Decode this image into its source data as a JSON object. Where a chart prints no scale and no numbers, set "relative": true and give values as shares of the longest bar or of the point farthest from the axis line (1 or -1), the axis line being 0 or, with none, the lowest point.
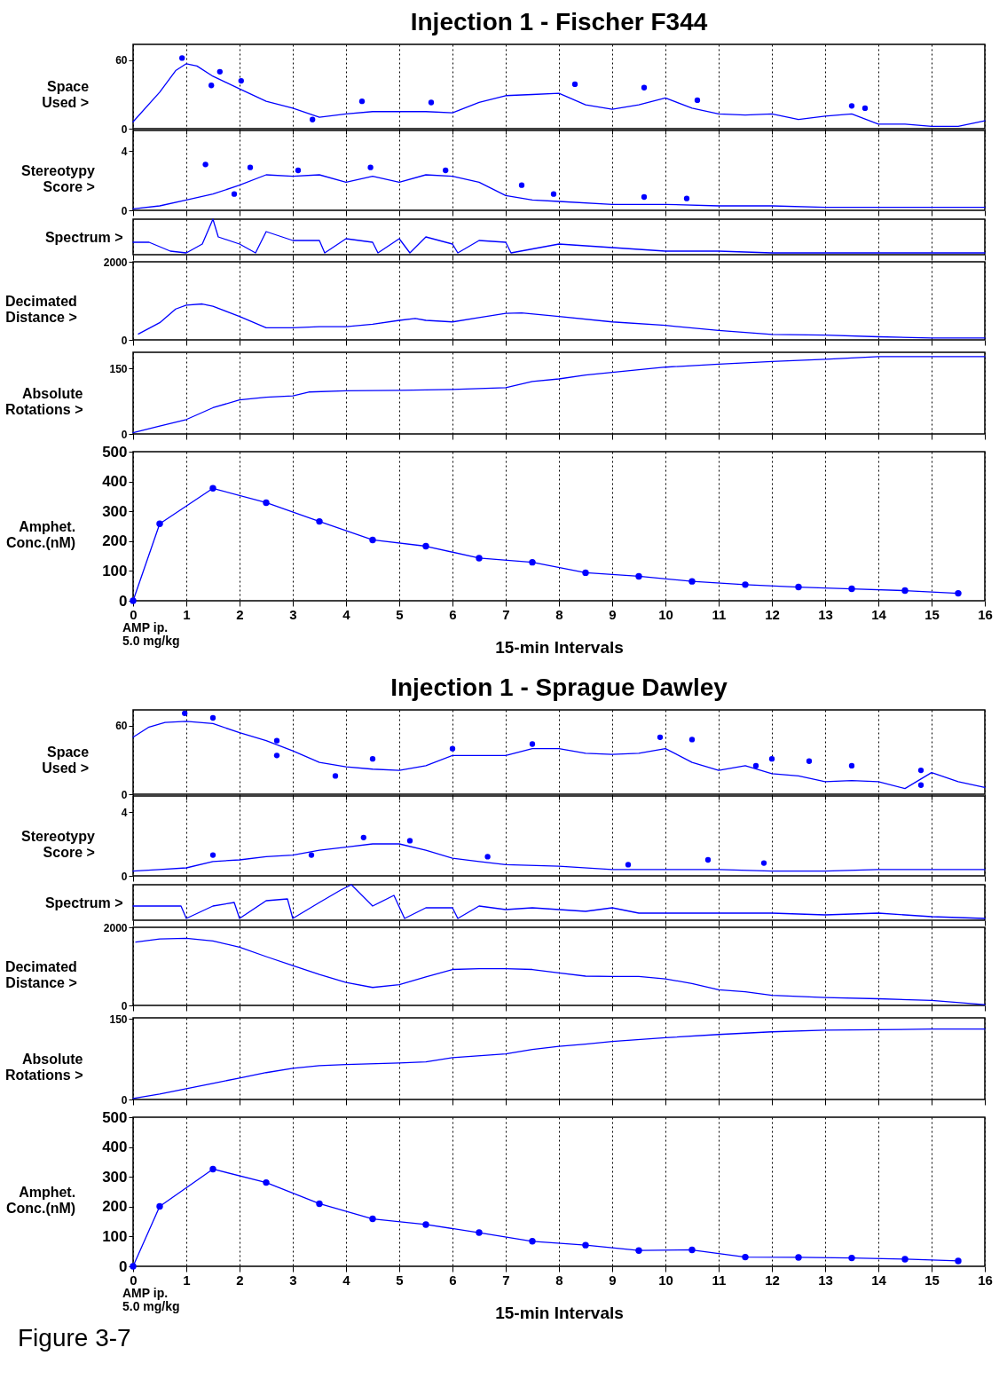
{
  "chart_data": [
    {
      "type": "line",
      "title": "Injection 1 - Fischer F344",
      "ylabel": "Space Used >",
      "xlim": [
        0,
        16
      ],
      "xticks": [
        0,
        1,
        2,
        3,
        4,
        5,
        6,
        7,
        8,
        9,
        10,
        11,
        12,
        13,
        14,
        15,
        16
      ],
      "ylim": [
        0,
        74
      ],
      "yticks": [
        0,
        60
      ],
      "grid": "x",
      "tick_labels": "y",
      "series": [
        {
          "type": "scatter",
          "marker": "circle",
          "color": "#0000ff",
          "x": [
            0.92,
            1.47,
            1.63,
            2.03,
            3.37,
            4.3,
            5.6,
            8.3,
            9.6,
            10.6,
            13.5,
            13.75
          ],
          "values": [
            62,
            38,
            50,
            42,
            8,
            24,
            23,
            39,
            36,
            25,
            20,
            18
          ]
        },
        {
          "color": "#0000ff",
          "x": [
            0,
            0.5,
            0.8,
            1,
            1.2,
            1.5,
            2,
            2.5,
            3,
            3.5,
            4,
            4.5,
            5,
            5.5,
            6,
            6.5,
            7,
            7.5,
            8,
            8.5,
            9,
            9.5,
            10,
            10.5,
            11,
            11.5,
            12,
            12.5,
            13,
            13.5,
            14,
            14.5,
            15,
            15.5,
            16
          ],
          "values": [
            6,
            32,
            51,
            57,
            55,
            46,
            35,
            24,
            18,
            10,
            13,
            15,
            15,
            15,
            14,
            23,
            29,
            30,
            31,
            21,
            17,
            21,
            27,
            18,
            13,
            12,
            13,
            8,
            11,
            13,
            4,
            4,
            2,
            2,
            7
          ]
        }
      ]
    },
    {
      "type": "line",
      "ylabel": "Stereotypy Score >",
      "xlim": [
        0,
        16
      ],
      "xticks": [
        0,
        1,
        2,
        3,
        4,
        5,
        6,
        7,
        8,
        9,
        10,
        11,
        12,
        13,
        14,
        15,
        16
      ],
      "ylim": [
        0,
        5.4
      ],
      "yticks": [
        0,
        4
      ],
      "grid": "x",
      "tick_labels": "y",
      "series": [
        {
          "type": "scatter",
          "marker": "circle",
          "color": "#0000ff",
          "x": [
            1.36,
            1.9,
            2.2,
            3.1,
            4.46,
            5.87,
            7.3,
            7.9,
            9.6,
            10.4
          ],
          "values": [
            3.1,
            1.1,
            2.9,
            2.7,
            2.9,
            2.7,
            1.7,
            1.1,
            0.9,
            0.8
          ]
        },
        {
          "color": "#0000ff",
          "x": [
            0,
            0.5,
            1,
            1.5,
            2,
            2.5,
            3,
            3.5,
            4,
            4.5,
            5,
            5.5,
            6,
            6.5,
            7,
            7.5,
            8,
            9,
            10,
            11,
            12,
            13,
            14,
            15,
            16
          ],
          "values": [
            0.1,
            0.3,
            0.7,
            1.1,
            1.7,
            2.4,
            2.3,
            2.4,
            1.9,
            2.3,
            1.9,
            2.4,
            2.3,
            1.9,
            1.0,
            0.7,
            0.6,
            0.4,
            0.4,
            0.3,
            0.3,
            0.2,
            0.2,
            0.2,
            0.2
          ]
        }
      ]
    },
    {
      "type": "line",
      "ylabel": "Spectrum >",
      "relative": true,
      "xlim": [
        0,
        16
      ],
      "xticks": [
        0,
        1,
        2,
        3,
        4,
        5,
        6,
        7,
        8,
        9,
        10,
        11,
        12,
        13,
        14,
        15,
        16
      ],
      "grid": "x",
      "tick_labels": false,
      "series": [
        {
          "color": "#0000ff",
          "x": [
            0,
            0.3,
            0.7,
            1,
            1.3,
            1.5,
            1.6,
            2,
            2.3,
            2.5,
            3,
            3.5,
            3.6,
            4,
            4.5,
            4.6,
            5,
            5.2,
            5.5,
            6,
            6.1,
            6.5,
            7,
            7.1,
            8,
            8.5,
            9,
            10,
            11,
            12,
            13,
            14,
            15,
            16
          ],
          "values": [
            0.35,
            0.35,
            0.1,
            0.05,
            0.3,
            1,
            0.5,
            0.3,
            0.05,
            0.65,
            0.4,
            0.4,
            0.05,
            0.45,
            0.35,
            0.05,
            0.45,
            0.05,
            0.5,
            0.3,
            0.05,
            0.4,
            0.35,
            0.05,
            0.3,
            0.25,
            0.2,
            0.1,
            0.1,
            0.05,
            0.05,
            0.05,
            0.05,
            0.05
          ]
        }
      ]
    },
    {
      "type": "line",
      "ylabel": "Decimated Distance >",
      "xlim": [
        0,
        16
      ],
      "xticks": [
        0,
        1,
        2,
        3,
        4,
        5,
        6,
        7,
        8,
        9,
        10,
        11,
        12,
        13,
        14,
        15,
        16
      ],
      "ylim": [
        0,
        2000
      ],
      "yticks": [
        0,
        2000
      ],
      "grid": "x",
      "tick_labels": "y",
      "series": [
        {
          "color": "#0000ff",
          "x": [
            0.1,
            0.5,
            0.8,
            1,
            1.3,
            1.5,
            2,
            2.5,
            3,
            3.5,
            4,
            4.5,
            5,
            5.3,
            5.5,
            6,
            6.5,
            7,
            7.3,
            8,
            9,
            10,
            11,
            12,
            13,
            14,
            15,
            16
          ],
          "values": [
            150,
            440,
            790,
            890,
            920,
            860,
            600,
            310,
            310,
            340,
            340,
            400,
            500,
            550,
            500,
            460,
            570,
            680,
            690,
            600,
            460,
            370,
            240,
            140,
            120,
            80,
            50,
            50
          ]
        }
      ]
    },
    {
      "type": "line",
      "ylabel": "Absolute Rotations >",
      "xlim": [
        0,
        16
      ],
      "xticks": [
        0,
        1,
        2,
        3,
        4,
        5,
        6,
        7,
        8,
        9,
        10,
        11,
        12,
        13,
        14,
        15,
        16
      ],
      "ylim": [
        0,
        187
      ],
      "yticks": [
        0,
        150
      ],
      "grid": "x",
      "tick_labels": "y",
      "series": [
        {
          "color": "#0000ff",
          "x": [
            0,
            0.5,
            1,
            1.5,
            2,
            2.5,
            3,
            3.3,
            4,
            5,
            6,
            7,
            7.5,
            8,
            8.5,
            9,
            10,
            11,
            12,
            13,
            14,
            15,
            16
          ],
          "values": [
            3,
            18,
            33,
            60,
            78,
            84,
            87,
            96,
            99,
            100,
            102,
            106,
            120,
            126,
            135,
            141,
            153,
            160,
            166,
            171,
            177,
            177,
            177
          ]
        }
      ]
    },
    {
      "type": "line",
      "ylabel": "Amphet. Conc.(nM)",
      "xlabel": "15-min Intervals",
      "xlim": [
        0,
        16
      ],
      "xticks": [
        0,
        1,
        2,
        3,
        4,
        5,
        6,
        7,
        8,
        9,
        10,
        11,
        12,
        13,
        14,
        15,
        16
      ],
      "ylim": [
        0,
        500
      ],
      "yticks": [
        0,
        100,
        200,
        300,
        400,
        500
      ],
      "grid": "x",
      "annotations": [
        "AMP ip.",
        "5.0 mg/kg"
      ],
      "series": [
        {
          "color": "#0000ff",
          "marker": "circle",
          "x": [
            0,
            0.5,
            1.5,
            2.5,
            3.5,
            4.5,
            5.5,
            6.5,
            7.5,
            8.5,
            9.5,
            10.5,
            11.5,
            12.5,
            13.5,
            14.5,
            15.5
          ],
          "values": [
            0,
            258,
            377,
            329,
            266,
            204,
            183,
            143,
            129,
            94,
            82,
            65,
            54,
            46,
            40,
            34,
            25
          ]
        }
      ]
    },
    {
      "type": "line",
      "title": "Injection 1 - Sprague Dawley",
      "ylabel": "Space Used >",
      "xlim": [
        0,
        16
      ],
      "xticks": [
        0,
        1,
        2,
        3,
        4,
        5,
        6,
        7,
        8,
        9,
        10,
        11,
        12,
        13,
        14,
        15,
        16
      ],
      "ylim": [
        0,
        74
      ],
      "yticks": [
        0,
        60
      ],
      "grid": "x",
      "tick_labels": "y",
      "series": [
        {
          "type": "scatter",
          "marker": "circle",
          "color": "#0000ff",
          "x": [
            0.97,
            1.5,
            2.7,
            2.7,
            3.8,
            4.5,
            6,
            7.5,
            9.9,
            10.5,
            11.7,
            12,
            12.7,
            13.5,
            14.8,
            14.8
          ],
          "values": [
            71,
            67,
            47,
            34,
            16,
            31,
            40,
            44,
            50,
            48,
            25,
            31,
            29,
            25,
            21,
            8
          ]
        },
        {
          "color": "#0000ff",
          "x": [
            0,
            0.3,
            0.6,
            1,
            1.5,
            2,
            2.5,
            3,
            3.5,
            4,
            4.5,
            5,
            5.5,
            6,
            7,
            7.5,
            8,
            8.5,
            9,
            9.5,
            10,
            10.5,
            11,
            11.5,
            12,
            12.5,
            13,
            13.5,
            14,
            14.5,
            15,
            15.5,
            16
          ],
          "values": [
            50,
            59,
            63,
            64,
            62,
            54,
            47,
            38,
            28,
            24,
            22,
            21,
            25,
            34,
            34,
            40,
            40,
            36,
            35,
            36,
            40,
            28,
            21,
            25,
            18,
            16,
            11,
            12,
            11,
            5,
            19,
            11,
            6
          ]
        }
      ]
    },
    {
      "type": "line",
      "ylabel": "Stereotypy Score >",
      "xlim": [
        0,
        16
      ],
      "xticks": [
        0,
        1,
        2,
        3,
        4,
        5,
        6,
        7,
        8,
        9,
        10,
        11,
        12,
        13,
        14,
        15,
        16
      ],
      "ylim": [
        0,
        5
      ],
      "yticks": [
        0,
        4
      ],
      "grid": "x",
      "tick_labels": "y",
      "series": [
        {
          "type": "scatter",
          "marker": "circle",
          "color": "#0000ff",
          "x": [
            1.5,
            3.35,
            4.33,
            5.2,
            6.66,
            9.3,
            10.8,
            11.85
          ],
          "values": [
            1.3,
            1.3,
            2.4,
            2.2,
            1.2,
            0.7,
            1.0,
            0.8
          ]
        },
        {
          "color": "#0000ff",
          "x": [
            0,
            0.5,
            1,
            1.5,
            2,
            2.5,
            3,
            3.5,
            4,
            4.5,
            5,
            5.5,
            6,
            6.5,
            7,
            8,
            9,
            10,
            11,
            12,
            13,
            14,
            15,
            16
          ],
          "values": [
            0.3,
            0.4,
            0.5,
            0.9,
            1.0,
            1.2,
            1.3,
            1.6,
            1.8,
            2.0,
            2.0,
            1.6,
            1.1,
            0.9,
            0.7,
            0.6,
            0.4,
            0.4,
            0.4,
            0.3,
            0.3,
            0.4,
            0.4,
            0.4
          ]
        }
      ]
    },
    {
      "type": "line",
      "ylabel": "Spectrum >",
      "relative": true,
      "xlim": [
        0,
        16
      ],
      "xticks": [
        0,
        1,
        2,
        3,
        4,
        5,
        6,
        7,
        8,
        9,
        10,
        11,
        12,
        13,
        14,
        15,
        16
      ],
      "grid": "x",
      "tick_labels": false,
      "series": [
        {
          "color": "#0000ff",
          "x": [
            0,
            0.9,
            1,
            1.5,
            1.9,
            2,
            2.5,
            2.9,
            3,
            3.5,
            3.9,
            4.1,
            4.5,
            4.9,
            5.1,
            5.5,
            6,
            6.1,
            6.5,
            7,
            7.5,
            8,
            8.5,
            9,
            9.5,
            10,
            11,
            12,
            13,
            14,
            15,
            16
          ],
          "values": [
            0.4,
            0.4,
            0.05,
            0.4,
            0.5,
            0.05,
            0.55,
            0.6,
            0.05,
            0.5,
            0.85,
            1,
            0.4,
            0.7,
            0.05,
            0.35,
            0.35,
            0.05,
            0.4,
            0.3,
            0.35,
            0.3,
            0.25,
            0.35,
            0.2,
            0.2,
            0.2,
            0.2,
            0.15,
            0.2,
            0.1,
            0.05
          ]
        }
      ]
    },
    {
      "type": "line",
      "ylabel": "Decimated Distance >",
      "xlim": [
        0,
        16
      ],
      "xticks": [
        0,
        1,
        2,
        3,
        4,
        5,
        6,
        7,
        8,
        9,
        10,
        11,
        12,
        13,
        14,
        15,
        16
      ],
      "ylim": [
        0,
        2000
      ],
      "yticks": [
        0,
        2000
      ],
      "grid": "x",
      "tick_labels": "y",
      "series": [
        {
          "color": "#0000ff",
          "x": [
            0.05,
            0.5,
            1,
            1.5,
            2,
            2.5,
            3,
            3.5,
            4,
            4.5,
            5,
            5.5,
            6,
            6.5,
            7,
            7.5,
            8,
            8.5,
            9,
            9.5,
            10,
            10.5,
            11,
            11.5,
            12,
            13,
            14,
            15,
            16
          ],
          "values": [
            1620,
            1700,
            1720,
            1650,
            1490,
            1250,
            1020,
            790,
            590,
            460,
            530,
            730,
            920,
            940,
            940,
            920,
            830,
            750,
            740,
            740,
            680,
            560,
            400,
            350,
            260,
            200,
            170,
            130,
            20
          ]
        }
      ]
    },
    {
      "type": "line",
      "ylabel": "Absolute Rotations >",
      "xlim": [
        0,
        16
      ],
      "xticks": [
        0,
        1,
        2,
        3,
        4,
        5,
        6,
        7,
        8,
        9,
        10,
        11,
        12,
        13,
        14,
        15,
        16
      ],
      "ylim": [
        0,
        152
      ],
      "yticks": [
        0,
        150
      ],
      "grid": "x",
      "tick_labels": "y",
      "series": [
        {
          "color": "#0000ff",
          "x": [
            0,
            0.5,
            1,
            1.5,
            2,
            2.5,
            3,
            3.5,
            4,
            5,
            5.5,
            6,
            7,
            7.5,
            8,
            8.5,
            9,
            10,
            11,
            12,
            13,
            14,
            15,
            16
          ],
          "values": [
            2,
            10,
            20,
            30,
            40,
            50,
            58,
            63,
            65,
            68,
            70,
            78,
            85,
            93,
            99,
            103,
            108,
            115,
            121,
            126,
            129,
            130,
            131,
            131
          ]
        }
      ]
    },
    {
      "type": "line",
      "ylabel": "Amphet. Conc.(nM)",
      "xlabel": "15-min Intervals",
      "xlim": [
        0,
        16
      ],
      "xticks": [
        0,
        1,
        2,
        3,
        4,
        5,
        6,
        7,
        8,
        9,
        10,
        11,
        12,
        13,
        14,
        15,
        16
      ],
      "ylim": [
        0,
        500
      ],
      "yticks": [
        0,
        100,
        200,
        300,
        400,
        500
      ],
      "grid": "x",
      "annotations": [
        "AMP ip.",
        "5.0 mg/kg",
        "Figure 3-7"
      ],
      "series": [
        {
          "color": "#0000ff",
          "marker": "circle",
          "x": [
            0,
            0.5,
            1.5,
            2.5,
            3.5,
            4.5,
            5.5,
            6.5,
            7.5,
            8.5,
            9.5,
            10.5,
            11.5,
            12.5,
            13.5,
            14.5,
            15.5
          ],
          "values": [
            0,
            201,
            326,
            281,
            210,
            159,
            140,
            113,
            84,
            71,
            53,
            55,
            31,
            30,
            28,
            24,
            18
          ]
        }
      ]
    }
  ]
}
